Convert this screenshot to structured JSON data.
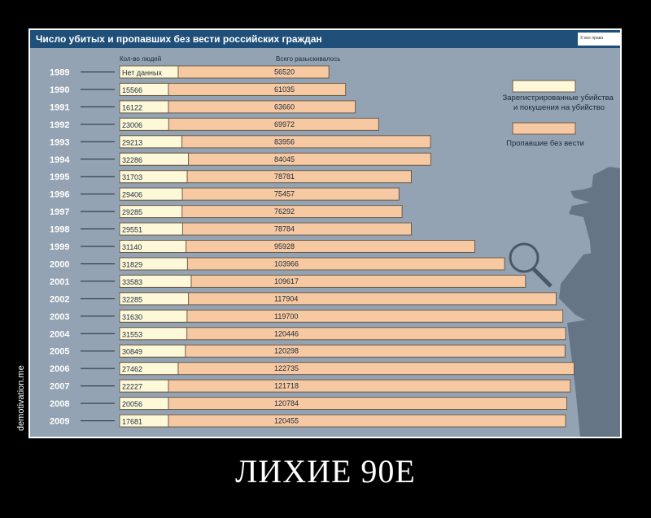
{
  "chart_data": {
    "type": "bar",
    "title": "Число убитых и пропавших без вести российских граждан",
    "col_header_1": "Кол-во людей",
    "col_header_2": "Всего разыскивалось",
    "categories": [
      "1989",
      "1990",
      "1991",
      "1992",
      "1993",
      "1994",
      "1995",
      "1996",
      "1997",
      "1998",
      "1999",
      "2000",
      "2001",
      "2002",
      "2003",
      "2004",
      "2005",
      "2006",
      "2007",
      "2008",
      "2009"
    ],
    "series": [
      {
        "name": "Зарегистрированные убийства и покушения на убийство",
        "color": "#fdf8d8",
        "values": [
          null,
          15566,
          16122,
          23006,
          29213,
          32286,
          31703,
          29406,
          29285,
          29551,
          31140,
          31829,
          33583,
          32285,
          31630,
          31553,
          30849,
          27462,
          22227,
          20056,
          17681
        ],
        "labels": [
          "Нет данных",
          "15566",
          "16122",
          "23006",
          "29213",
          "32286",
          "31703",
          "29406",
          "29285",
          "29551",
          "31140",
          "31829",
          "33583",
          "32285",
          "31630",
          "31553",
          "30849",
          "27462",
          "22227",
          "20056",
          "17681"
        ]
      },
      {
        "name": "Пропавшие без вести",
        "color": "#f7c9a2",
        "values": [
          56520,
          61035,
          63660,
          69972,
          83956,
          84045,
          78781,
          75457,
          76292,
          78784,
          95928,
          103966,
          109617,
          117904,
          119700,
          120446,
          120298,
          122735,
          121718,
          120784,
          120455
        ]
      }
    ],
    "legend_position": "right",
    "grid": false
  },
  "corner_logo": "© все права",
  "caption": "ЛИХИЕ 90Е",
  "watermark": "demotivation.me"
}
